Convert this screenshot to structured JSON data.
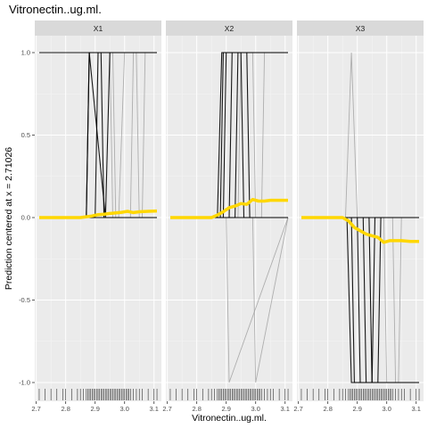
{
  "chart_data": {
    "type": "line",
    "title": "Vitronectin..ug.ml.",
    "xlabel": "Vitronectin..ug.ml.",
    "ylabel": "Prediction centered at x = 2.71026",
    "xlim": [
      2.695,
      3.125
    ],
    "ylim": [
      -1.08,
      1.1
    ],
    "x_ticks": [
      2.7,
      2.8,
      2.9,
      3.0,
      3.1
    ],
    "x_tick_labels": [
      "2.7",
      "2.8",
      "2.9",
      "3.0",
      "3.1"
    ],
    "y_ticks": [
      1.0,
      0.5,
      0.0,
      -0.5,
      -1.0
    ],
    "y_tick_labels": [
      "1.0",
      "0.5",
      "0.0",
      "-0.5",
      "-1.0"
    ],
    "grid": true,
    "colors": {
      "panel_bg": "#ebebeb",
      "strip_bg": "#d9d9d9",
      "grid_major": "#ffffff",
      "ice_dark": "#000000",
      "ice_light": "#999999",
      "pdp": "#ffd700"
    },
    "panels": [
      {
        "label": "X1",
        "pdp": {
          "x": [
            2.71,
            2.75,
            2.8,
            2.85,
            2.87,
            2.89,
            2.91,
            2.93,
            2.95,
            2.97,
            2.99,
            3.01,
            3.03,
            3.05,
            3.08,
            3.11
          ],
          "y": [
            0,
            0,
            0,
            0,
            0.005,
            0.01,
            0.018,
            0.02,
            0.025,
            0.028,
            0.032,
            0.038,
            0.03,
            0.035,
            0.038,
            0.04
          ]
        },
        "ice_lines": [
          {
            "x": [
              2.71,
              2.87,
              2.88,
              3.11
            ],
            "y": [
              0,
              0,
              1,
              1
            ],
            "tone": "dark"
          },
          {
            "x": [
              2.71,
              2.87,
              3.11
            ],
            "y": [
              0,
              0,
              0
            ],
            "tone": "dark"
          },
          {
            "x": [
              2.71,
              2.87,
              2.88,
              3.11
            ],
            "y": [
              1,
              1,
              1,
              1
            ],
            "tone": "dark"
          },
          {
            "x": [
              2.87,
              2.88,
              2.92,
              2.93,
              3.11
            ],
            "y": [
              0,
              1,
              1,
              0,
              0
            ],
            "tone": "dark"
          },
          {
            "x": [
              2.88,
              2.9,
              2.91,
              3.11
            ],
            "y": [
              0,
              0,
              1,
              1
            ],
            "tone": "dark"
          },
          {
            "x": [
              2.88,
              2.935,
              2.95,
              3.11
            ],
            "y": [
              1,
              0,
              1,
              1
            ],
            "tone": "dark"
          },
          {
            "x": [
              2.88,
              2.98,
              3.0,
              3.11
            ],
            "y": [
              0,
              0,
              1,
              1
            ],
            "tone": "light"
          },
          {
            "x": [
              2.88,
              2.96,
              2.97,
              3.11
            ],
            "y": [
              1,
              1,
              0,
              0
            ],
            "tone": "light"
          },
          {
            "x": [
              2.9,
              2.95,
              2.96,
              3.11
            ],
            "y": [
              1,
              1,
              0,
              0
            ],
            "tone": "light"
          },
          {
            "x": [
              2.92,
              3.02,
              3.03,
              3.11
            ],
            "y": [
              0,
              0,
              1,
              1
            ],
            "tone": "light"
          },
          {
            "x": [
              3.0,
              3.04,
              3.05,
              3.11
            ],
            "y": [
              1,
              1,
              0,
              0
            ],
            "tone": "light"
          },
          {
            "x": [
              2.93,
              3.06,
              3.07,
              3.11
            ],
            "y": [
              0,
              0,
              1,
              1
            ],
            "tone": "light"
          }
        ]
      },
      {
        "label": "X2",
        "pdp": {
          "x": [
            2.71,
            2.75,
            2.8,
            2.85,
            2.87,
            2.89,
            2.91,
            2.93,
            2.95,
            2.97,
            2.99,
            3.01,
            3.03,
            3.05,
            3.08,
            3.11
          ],
          "y": [
            0,
            0,
            0,
            0,
            0.015,
            0.035,
            0.06,
            0.07,
            0.085,
            0.08,
            0.11,
            0.1,
            0.1,
            0.105,
            0.105,
            0.105
          ]
        },
        "ice_lines": [
          {
            "x": [
              2.71,
              2.87,
              2.885,
              3.11
            ],
            "y": [
              0,
              0,
              1,
              1
            ],
            "tone": "dark"
          },
          {
            "x": [
              2.71,
              3.11
            ],
            "y": [
              0,
              0
            ],
            "tone": "dark"
          },
          {
            "x": [
              2.87,
              2.89,
              2.9,
              3.11
            ],
            "y": [
              0,
              0,
              1,
              1
            ],
            "tone": "dark"
          },
          {
            "x": [
              2.87,
              2.91,
              2.92,
              3.11
            ],
            "y": [
              0,
              0,
              1,
              1
            ],
            "tone": "dark"
          },
          {
            "x": [
              2.88,
              2.89,
              2.95,
              2.96,
              3.11
            ],
            "y": [
              0,
              1,
              1,
              0,
              0
            ],
            "tone": "dark"
          },
          {
            "x": [
              2.88,
              2.93,
              2.94,
              3.11
            ],
            "y": [
              0,
              0,
              1,
              1
            ],
            "tone": "dark"
          },
          {
            "x": [
              2.9,
              2.97,
              2.98,
              3.11
            ],
            "y": [
              1,
              1,
              0,
              0
            ],
            "tone": "dark"
          },
          {
            "x": [
              2.88,
              2.94,
              2.95,
              3.11
            ],
            "y": [
              0,
              0,
              1,
              1
            ],
            "tone": "light"
          },
          {
            "x": [
              2.87,
              2.9,
              2.91,
              3.11
            ],
            "y": [
              0,
              0,
              -1,
              0
            ],
            "tone": "light"
          },
          {
            "x": [
              2.95,
              2.99,
              3.0,
              3.11
            ],
            "y": [
              0,
              0,
              -1,
              0
            ],
            "tone": "light"
          },
          {
            "x": [
              2.96,
              2.99,
              3.0,
              3.11
            ],
            "y": [
              1,
              1,
              0,
              0
            ],
            "tone": "light"
          },
          {
            "x": [
              2.93,
              3.02,
              3.03,
              3.11
            ],
            "y": [
              0,
              0,
              1,
              1
            ],
            "tone": "light"
          }
        ]
      },
      {
        "label": "X3",
        "pdp": {
          "x": [
            2.71,
            2.75,
            2.8,
            2.85,
            2.87,
            2.89,
            2.91,
            2.93,
            2.95,
            2.97,
            2.99,
            3.01,
            3.03,
            3.05,
            3.08,
            3.11
          ],
          "y": [
            0,
            0,
            0,
            0,
            -0.02,
            -0.06,
            -0.08,
            -0.1,
            -0.11,
            -0.12,
            -0.15,
            -0.14,
            -0.14,
            -0.14,
            -0.145,
            -0.145
          ]
        },
        "ice_lines": [
          {
            "x": [
              2.71,
              2.865,
              2.88,
              3.11
            ],
            "y": [
              0,
              0,
              -1,
              -1
            ],
            "tone": "dark"
          },
          {
            "x": [
              2.71,
              3.11
            ],
            "y": [
              0,
              0
            ],
            "tone": "dark"
          },
          {
            "x": [
              2.87,
              2.9,
              2.91,
              3.11
            ],
            "y": [
              0,
              0,
              -1,
              -1
            ],
            "tone": "dark"
          },
          {
            "x": [
              2.87,
              2.92,
              2.93,
              3.11
            ],
            "y": [
              0,
              0,
              -1,
              -1
            ],
            "tone": "dark"
          },
          {
            "x": [
              2.88,
              2.89,
              2.95,
              2.96,
              3.11
            ],
            "y": [
              0,
              -1,
              -1,
              0,
              0
            ],
            "tone": "dark"
          },
          {
            "x": [
              2.88,
              2.94,
              2.95,
              3.11
            ],
            "y": [
              0,
              0,
              -1,
              -1
            ],
            "tone": "dark"
          },
          {
            "x": [
              2.9,
              2.97,
              2.98,
              3.11
            ],
            "y": [
              -1,
              -1,
              0,
              0
            ],
            "tone": "dark"
          },
          {
            "x": [
              2.86,
              2.88,
              2.9,
              3.11
            ],
            "y": [
              0,
              1,
              0,
              0
            ],
            "tone": "light"
          },
          {
            "x": [
              2.9,
              2.94,
              2.95,
              3.11
            ],
            "y": [
              0,
              0,
              -1,
              -1
            ],
            "tone": "light"
          },
          {
            "x": [
              2.95,
              2.99,
              3.0,
              3.11
            ],
            "y": [
              0,
              0,
              -1,
              -1
            ],
            "tone": "light"
          },
          {
            "x": [
              2.98,
              3.02,
              3.03,
              3.11
            ],
            "y": [
              0,
              0,
              -1,
              -1
            ],
            "tone": "light"
          },
          {
            "x": [
              3.0,
              3.04,
              3.05,
              3.11
            ],
            "y": [
              -1,
              -1,
              0,
              0
            ],
            "tone": "light"
          }
        ]
      }
    ],
    "rug_x": [
      2.71,
      2.73,
      2.75,
      2.77,
      2.79,
      2.8,
      2.82,
      2.84,
      2.85,
      2.86,
      2.87,
      2.875,
      2.88,
      2.885,
      2.89,
      2.895,
      2.9,
      2.905,
      2.91,
      2.915,
      2.92,
      2.925,
      2.93,
      2.935,
      2.94,
      2.945,
      2.95,
      2.955,
      2.96,
      2.965,
      2.97,
      2.975,
      2.98,
      2.985,
      2.99,
      2.995,
      3.0,
      3.005,
      3.01,
      3.015,
      3.02,
      3.03,
      3.04,
      3.05,
      3.06,
      3.08,
      3.1,
      3.11
    ]
  }
}
